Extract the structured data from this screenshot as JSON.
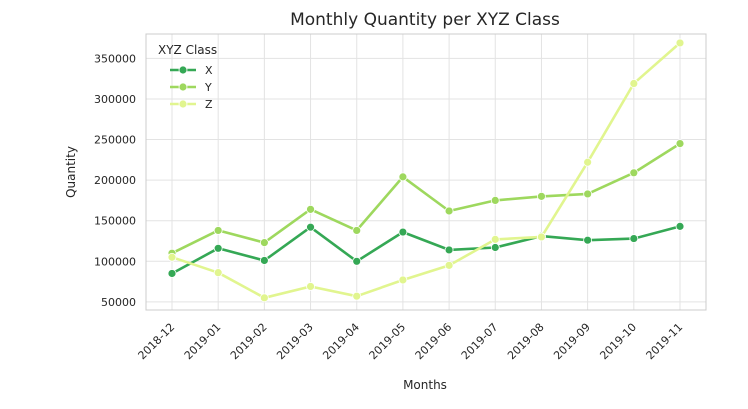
{
  "chart_data": {
    "type": "line",
    "title": "Monthly Quantity per XYZ Class",
    "xlabel": "Months",
    "ylabel": "Quantity",
    "categories": [
      "2018-12",
      "2019-01",
      "2019-02",
      "2019-03",
      "2019-04",
      "2019-05",
      "2019-06",
      "2019-07",
      "2019-08",
      "2019-09",
      "2019-10",
      "2019-11"
    ],
    "ylim": [
      40000,
      380000
    ],
    "yticks": [
      50000,
      100000,
      150000,
      200000,
      250000,
      300000,
      350000
    ],
    "ytick_labels": [
      "50000",
      "100000",
      "150000",
      "200000",
      "250000",
      "300000",
      "350000"
    ],
    "grid": true,
    "legend": {
      "title": "XYZ Class",
      "placement": "top-left"
    },
    "series": [
      {
        "name": "X",
        "color": "#35a855",
        "values": [
          85000,
          116000,
          101000,
          142000,
          100000,
          136000,
          114000,
          117000,
          131000,
          126000,
          128000,
          143000
        ]
      },
      {
        "name": "Y",
        "color": "#9ed85e",
        "values": [
          110000,
          138000,
          123000,
          164000,
          138000,
          204000,
          162000,
          175000,
          180000,
          183000,
          209000,
          245000
        ]
      },
      {
        "name": "Z",
        "color": "#e1f58f",
        "values": [
          105000,
          86000,
          55000,
          69000,
          57000,
          77000,
          95000,
          127000,
          130000,
          222000,
          319000,
          369000
        ]
      }
    ]
  }
}
